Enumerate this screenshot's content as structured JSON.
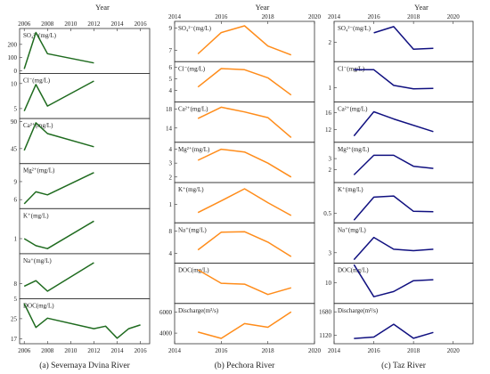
{
  "chart_data": [
    {
      "type": "line",
      "caption": "(a) Severnaya Dvina River",
      "xlabel": "Year",
      "color": "#1f6b1f",
      "xticks": [
        2006,
        2008,
        2010,
        2012,
        2014,
        2016
      ],
      "xlim": [
        2005.6,
        2016.8
      ],
      "panels": [
        {
          "label": "SO₄²⁻(mg/L)",
          "ylim": [
            -20,
            320
          ],
          "yticks": [
            0,
            100,
            200
          ],
          "series": [
            {
              "x": [
                2006,
                2007,
                2008,
                2012
              ],
              "y": [
                15,
                290,
                130,
                60
              ]
            }
          ]
        },
        {
          "label": "Cl⁻(mg/L)",
          "ylim": [
            3,
            12
          ],
          "yticks": [
            5,
            10
          ],
          "series": [
            {
              "x": [
                2006,
                2007,
                2008,
                2012
              ],
              "y": [
                4.5,
                9.8,
                5.5,
                10.5
              ]
            }
          ]
        },
        {
          "label": "Ca²⁺(mg/L)",
          "ylim": [
            20,
            95
          ],
          "yticks": [
            45,
            90
          ],
          "series": [
            {
              "x": [
                2006,
                2007,
                2008,
                2012
              ],
              "y": [
                42,
                88,
                70,
                48
              ]
            }
          ]
        },
        {
          "label": "Mg²⁺(mg/L)",
          "ylim": [
            4.5,
            12
          ],
          "yticks": [
            6,
            9
          ],
          "series": [
            {
              "x": [
                2006,
                2007,
                2008,
                2012
              ],
              "y": [
                5.3,
                7.3,
                6.8,
                10.5
              ]
            }
          ]
        },
        {
          "label": "K⁺(mg/L)",
          "ylim": [
            0.4,
            2.2
          ],
          "yticks": [
            1
          ],
          "series": [
            {
              "x": [
                2006,
                2007,
                2008,
                2012
              ],
              "y": [
                1.0,
                0.72,
                0.6,
                1.7
              ]
            }
          ]
        },
        {
          "label": "Na⁺(mg/L)",
          "ylim": [
            5,
            14
          ],
          "yticks": [
            5,
            8
          ],
          "series": [
            {
              "x": [
                2006,
                2007,
                2008,
                2012
              ],
              "y": [
                7.5,
                8.6,
                6.5,
                12.2
              ]
            }
          ]
        },
        {
          "label": "DOC(mg/L)",
          "ylim": [
            15,
            33
          ],
          "yticks": [
            17,
            25
          ],
          "series": [
            {
              "x": [
                2006,
                2007,
                2008,
                2012,
                2013,
                2014,
                2015,
                2016
              ],
              "y": [
                31,
                21.5,
                25.2,
                21,
                22,
                17.2,
                21,
                22.5
              ]
            }
          ]
        }
      ]
    },
    {
      "type": "line",
      "caption": "(b) Pechora River",
      "xlabel": "Year",
      "color": "#ff8c1a",
      "xticks": [
        2014,
        2016,
        2018,
        2020
      ],
      "xlim": [
        2014,
        2020
      ],
      "panels": [
        {
          "label": "SO₄²⁻(mg/L)",
          "ylim": [
            6,
            9.6
          ],
          "yticks": [
            7,
            9
          ],
          "series": [
            {
              "x": [
                2015,
                2016,
                2017,
                2018,
                2019
              ],
              "y": [
                6.7,
                8.6,
                9.2,
                7.4,
                6.6
              ]
            }
          ]
        },
        {
          "label": "Cl⁻(mg/L)",
          "ylim": [
            3,
            6.5
          ],
          "yticks": [
            4,
            5,
            6
          ],
          "series": [
            {
              "x": [
                2015,
                2016,
                2017,
                2018,
                2019
              ],
              "y": [
                4.3,
                5.9,
                5.8,
                5.1,
                3.6
              ]
            }
          ]
        },
        {
          "label": "Ca²⁺(mg/L)",
          "ylim": [
            11,
            19.5
          ],
          "yticks": [
            14,
            18
          ],
          "series": [
            {
              "x": [
                2015,
                2016,
                2017,
                2018,
                2019
              ],
              "y": [
                16,
                18.4,
                17.4,
                16.2,
                12
              ]
            }
          ]
        },
        {
          "label": "Mg²⁺(mg/L)",
          "ylim": [
            1.6,
            4.5
          ],
          "yticks": [
            2,
            3,
            4
          ],
          "series": [
            {
              "x": [
                2015,
                2016,
                2017,
                2018,
                2019
              ],
              "y": [
                3.2,
                4.0,
                3.8,
                3.0,
                2.0
              ]
            }
          ]
        },
        {
          "label": "K⁺(mg/L)",
          "ylim": [
            0.5,
            1.6
          ],
          "yticks": [
            1
          ],
          "series": [
            {
              "x": [
                2015,
                2016,
                2017,
                2018,
                2019
              ],
              "y": [
                0.78,
                1.1,
                1.43,
                1.05,
                0.7
              ]
            }
          ]
        },
        {
          "label": "Na⁺(mg/L)",
          "ylim": [
            2.2,
            9.5
          ],
          "yticks": [
            4,
            8
          ],
          "series": [
            {
              "x": [
                2015,
                2016,
                2017,
                2018,
                2019
              ],
              "y": [
                4.6,
                7.8,
                7.9,
                6.0,
                3.4
              ]
            }
          ]
        },
        {
          "label": "DOC(mg/L)",
          "ylim": [
            6,
            15
          ],
          "yticks": [],
          "series": [
            {
              "x": [
                2015,
                2016,
                2017,
                2018,
                2019
              ],
              "y": [
                13.5,
                10.5,
                10.3,
                8,
                9.5
              ]
            }
          ]
        },
        {
          "label": "Discharge(m³/s)",
          "ylim": [
            3000,
            6800
          ],
          "yticks": [
            4000,
            6000
          ],
          "series": [
            {
              "x": [
                2015,
                2016,
                2017,
                2018,
                2019
              ],
              "y": [
                4100,
                3500,
                4900,
                4550,
                6000
              ]
            }
          ]
        }
      ]
    },
    {
      "type": "line",
      "caption": "(c) Taz River",
      "xlabel": "Year",
      "color": "#101080",
      "xticks": [
        2014,
        2016,
        2018,
        2020
      ],
      "xlim": [
        2014,
        2021
      ],
      "panels": [
        {
          "label": "SO₄²⁻(mg/L)",
          "ylim": [
            0,
            4.2
          ],
          "yticks": [
            2
          ],
          "series": [
            {
              "x": [
                2016,
                2017,
                2018,
                2019
              ],
              "y": [
                3.0,
                3.65,
                1.3,
                1.4
              ]
            }
          ]
        },
        {
          "label": "Cl⁻(mg/L)",
          "ylim": [
            0.3,
            2.3
          ],
          "yticks": [
            1
          ],
          "series": [
            {
              "x": [
                2015,
                2016,
                2017,
                2018,
                2019
              ],
              "y": [
                1.9,
                1.9,
                1.12,
                0.95,
                0.97
              ]
            }
          ]
        },
        {
          "label": "Ca²⁺(mg/L)",
          "ylim": [
            9,
            18.5
          ],
          "yticks": [
            12,
            16
          ],
          "series": [
            {
              "x": [
                2015,
                2016,
                2017,
                2019
              ],
              "y": [
                10.5,
                16.2,
                14.5,
                11.5
              ]
            }
          ]
        },
        {
          "label": "Mg²⁺(mg/L)",
          "ylim": [
            0.8,
            4.5
          ],
          "yticks": [
            2,
            3
          ],
          "series": [
            {
              "x": [
                2015,
                2016,
                2017,
                2018,
                2019
              ],
              "y": [
                1.5,
                3.3,
                3.3,
                2.3,
                2.1
              ]
            }
          ]
        },
        {
          "label": "K⁺(mg/L)",
          "ylim": [
            0.25,
            1.3
          ],
          "yticks": [
            0.5
          ],
          "series": [
            {
              "x": [
                2015,
                2016,
                2017,
                2018,
                2019
              ],
              "y": [
                0.32,
                0.92,
                0.95,
                0.55,
                0.54
              ]
            }
          ]
        },
        {
          "label": "Na⁺(mg/L)",
          "ylim": [
            1.5,
            7.3
          ],
          "yticks": [
            3
          ],
          "series": [
            {
              "x": [
                2015,
                2016,
                2017,
                2018,
                2019
              ],
              "y": [
                2.0,
                5.2,
                3.5,
                3.3,
                3.5
              ]
            }
          ]
        },
        {
          "label": "DOC(mg/L)",
          "ylim": [
            6,
            13.8
          ],
          "yticks": [
            10
          ],
          "series": [
            {
              "x": [
                2015,
                2016,
                2017,
                2018,
                2019
              ],
              "y": [
                13.5,
                7.3,
                8.3,
                10.4,
                10.6
              ]
            }
          ]
        },
        {
          "label": "Discharge(m³/s)",
          "ylim": [
            920,
            1880
          ],
          "yticks": [
            1120,
            1680
          ],
          "series": [
            {
              "x": [
                2015,
                2016,
                2017,
                2018,
                2019
              ],
              "y": [
                1045,
                1080,
                1385,
                1050,
                1190
              ]
            }
          ]
        }
      ]
    }
  ]
}
